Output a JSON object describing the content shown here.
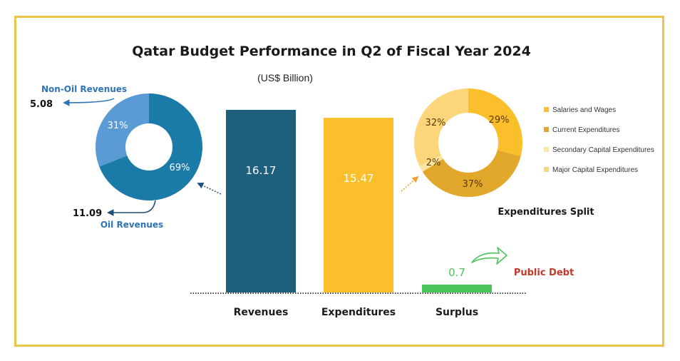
{
  "chart_data": [
    {
      "type": "bar",
      "title": "Qatar Budget Performance in Q2 of Fiscal Year 2024",
      "subtitle": "(US$ Billion)",
      "categories": [
        "Revenues",
        "Expenditures",
        "Surplus"
      ],
      "values": [
        16.17,
        15.47,
        0.7
      ],
      "value_labels": [
        "16.17",
        "15.47",
        "0.7"
      ],
      "colors": [
        "#1f5f7e",
        "#fbbf2b",
        "#4cc45c"
      ],
      "ylim": [
        0,
        16.17
      ],
      "grid": false
    },
    {
      "type": "pie",
      "variant": "donut",
      "slices": [
        {
          "label": "Non-Oil Revenues",
          "percent": 31,
          "percent_label": "31%",
          "value": 5.08,
          "value_label": "5.08",
          "color": "#5b9bd5"
        },
        {
          "label": "Oil Revenues",
          "percent": 69,
          "percent_label": "69%",
          "value": 11.09,
          "value_label": "11.09",
          "color": "#1a7aa8"
        }
      ]
    },
    {
      "type": "pie",
      "variant": "donut",
      "title": "Expenditures Split",
      "legend_position": "right",
      "slices": [
        {
          "label": "Salaries and Wages",
          "percent": 29,
          "percent_label": "29%",
          "color": "#fbbf2b"
        },
        {
          "label": "Current Expenditures",
          "percent": 37,
          "percent_label": "37%",
          "color": "#e2a82c"
        },
        {
          "label": "Secondary Capital Expenditures",
          "percent": 2,
          "percent_label": "2%",
          "color": "#fde6a2"
        },
        {
          "label": "Major Capital Expenditures",
          "percent": 32,
          "percent_label": "32%",
          "color": "#fdd57a"
        }
      ]
    }
  ],
  "annotations": {
    "public_debt": "Public Debt"
  },
  "colors": {
    "frame_border": "#e9c64a",
    "baseline": "#444444",
    "arrow_blue": "#2e74b5",
    "arrow_orange": "#f0a030",
    "arrow_green": "#4cc45c",
    "debt_text": "#c0392b"
  }
}
